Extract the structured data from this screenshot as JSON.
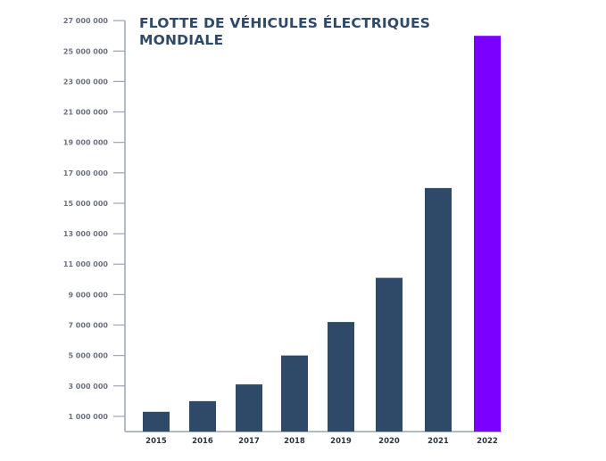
{
  "chart_data": {
    "type": "bar",
    "title": "FLOTTE DE VÉHICULES ÉLECTRIQUES MONDIALE",
    "xlabel": "",
    "ylabel": "",
    "categories": [
      "2015",
      "2016",
      "2017",
      "2018",
      "2019",
      "2020",
      "2021",
      "2022"
    ],
    "values": [
      1300000,
      2000000,
      3100000,
      5000000,
      7200000,
      10100000,
      16000000,
      26000000
    ],
    "ylim": [
      0,
      27000000
    ],
    "yticks": [
      1000000,
      3000000,
      5000000,
      7000000,
      9000000,
      11000000,
      13000000,
      15000000,
      17000000,
      19000000,
      21000000,
      23000000,
      25000000,
      27000000
    ],
    "ytick_labels": [
      "1 000 000",
      "3 000 000",
      "5 000 000",
      "7 000 000",
      "9 000 000",
      "11 000 000",
      "13 000 000",
      "15 000 000",
      "17 000 000",
      "19 000 000",
      "21 000 000",
      "23 000 000",
      "25 000 000",
      "27 000 000"
    ],
    "grid": false,
    "colors": {
      "default": "#2f4a69",
      "highlight": "#7b00ff",
      "axis": "#9aa3b5"
    },
    "highlight_index": 7
  }
}
